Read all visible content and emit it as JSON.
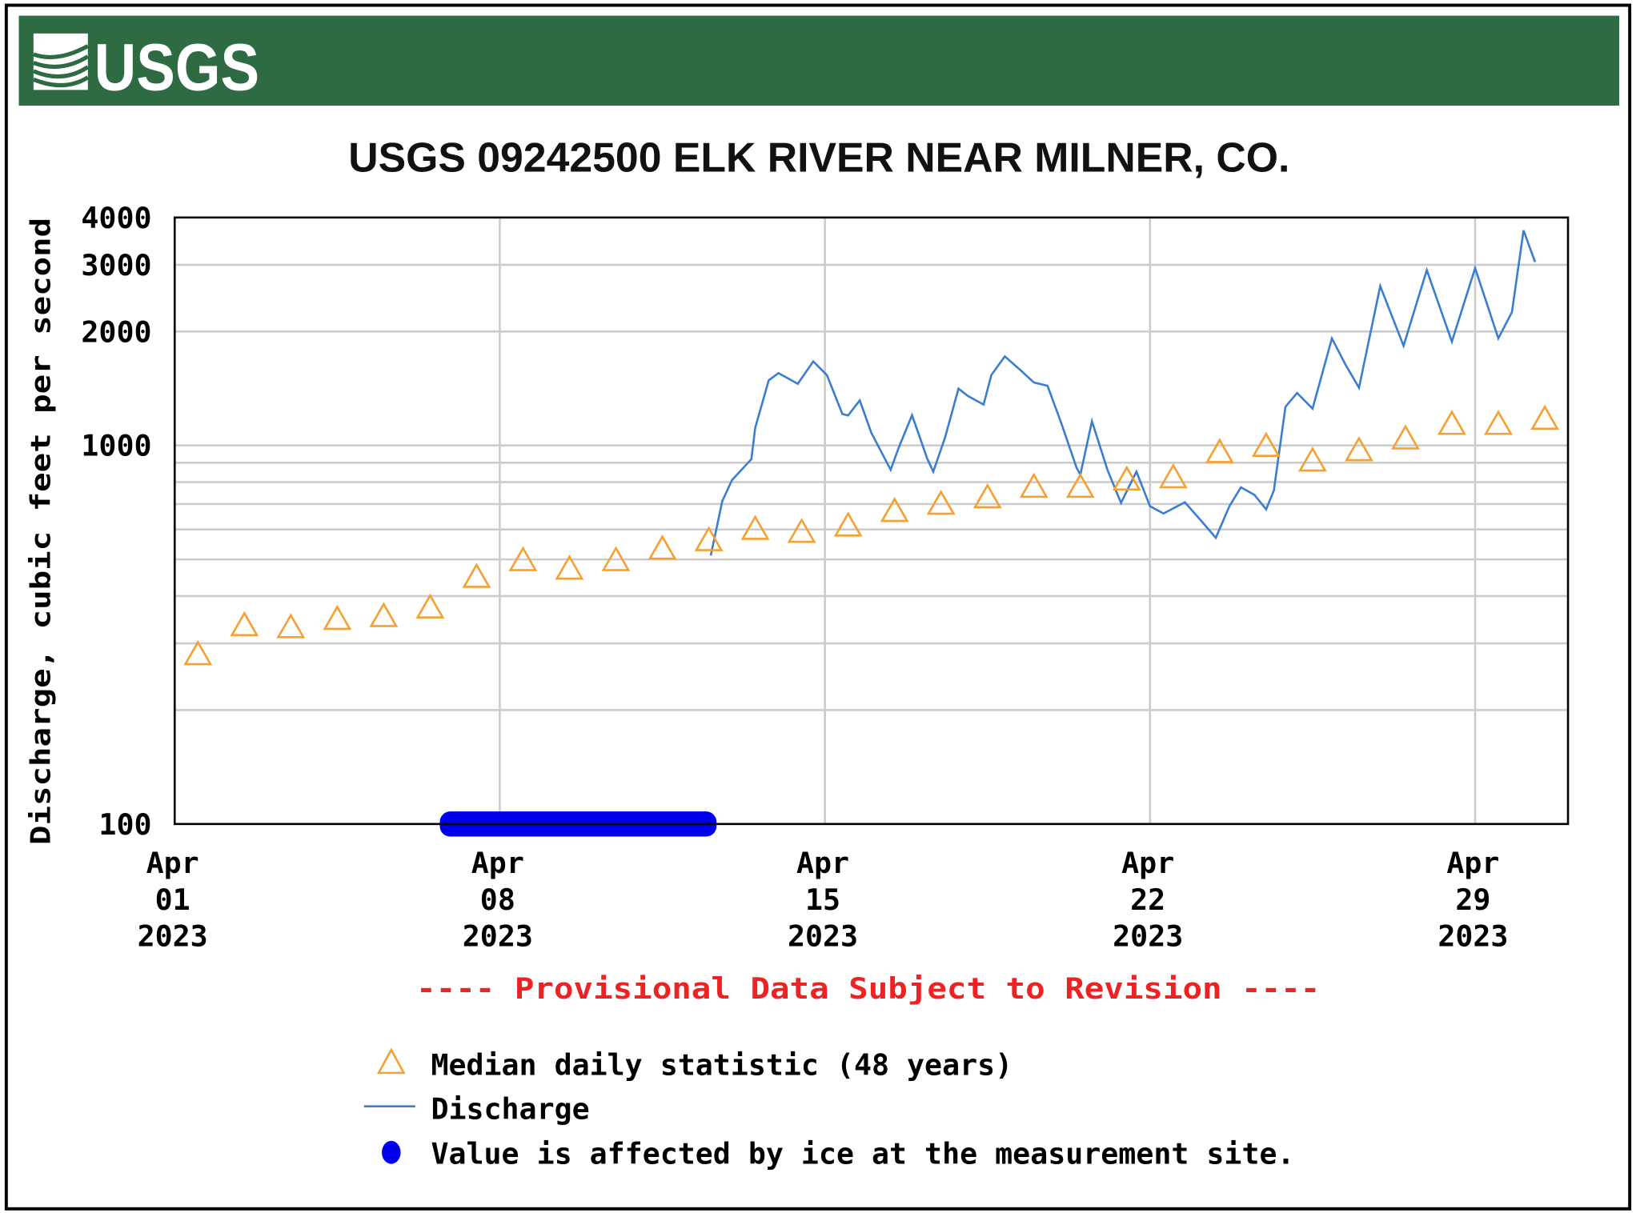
{
  "header": {
    "logo_text": "USGS",
    "banner_color": "#2e6b43"
  },
  "chart_data": {
    "type": "line",
    "title": "USGS 09242500 ELK RIVER NEAR MILNER, CO.",
    "ylabel": "Discharge, cubic feet per second",
    "xlabel": "",
    "y_scale": "log",
    "ylim": [
      100,
      4000
    ],
    "xlim": [
      "2023-04-01",
      "2023-05-01"
    ],
    "grid": true,
    "y_ticks": [
      "4000",
      "3000",
      "2000",
      "1000",
      "100"
    ],
    "x_ticks": [
      {
        "date": "2023-04-01",
        "label": [
          "Apr",
          "01",
          "2023"
        ]
      },
      {
        "date": "2023-04-08",
        "label": [
          "Apr",
          "08",
          "2023"
        ]
      },
      {
        "date": "2023-04-15",
        "label": [
          "Apr",
          "15",
          "2023"
        ]
      },
      {
        "date": "2023-04-22",
        "label": [
          "Apr",
          "22",
          "2023"
        ]
      },
      {
        "date": "2023-04-29",
        "label": [
          "Apr",
          "29",
          "2023"
        ]
      }
    ],
    "notice": "---- Provisional Data Subject to Revision ----",
    "legend_placement": "bottom",
    "series": [
      {
        "name": "Median daily statistic (48 years)",
        "marker": "triangle-open",
        "color": "#f5a030",
        "x": [
          "2023-04-01",
          "2023-04-02",
          "2023-04-03",
          "2023-04-04",
          "2023-04-05",
          "2023-04-06",
          "2023-04-07",
          "2023-04-08",
          "2023-04-09",
          "2023-04-10",
          "2023-04-11",
          "2023-04-12",
          "2023-04-13",
          "2023-04-14",
          "2023-04-15",
          "2023-04-16",
          "2023-04-17",
          "2023-04-18",
          "2023-04-19",
          "2023-04-20",
          "2023-04-21",
          "2023-04-22",
          "2023-04-23",
          "2023-04-24",
          "2023-04-25",
          "2023-04-26",
          "2023-04-27",
          "2023-04-28",
          "2023-04-29",
          "2023-04-30"
        ],
        "values": [
          280,
          334,
          330,
          347,
          353,
          372,
          448,
          496,
          471,
          496,
          532,
          560,
          600,
          589,
          612,
          669,
          699,
          727,
          775,
          775,
          810,
          821,
          957,
          994,
          909,
          968,
          1040,
          1136,
          1136,
          1172
        ]
      },
      {
        "name": "Discharge",
        "color": "#3a7fcf",
        "x": [
          "2023-04-12 13:00",
          "2023-04-12 19:00",
          "2023-04-13 00:00",
          "2023-04-13 10:00",
          "2023-04-13 12:00",
          "2023-04-13 19:00",
          "2023-04-14 00:00",
          "2023-04-14 10:00",
          "2023-04-14 18:00",
          "2023-04-15 01:00",
          "2023-04-15 09:00",
          "2023-04-15 12:00",
          "2023-04-15 18:00",
          "2023-04-16 00:00",
          "2023-04-16 10:00",
          "2023-04-16 14:00",
          "2023-04-16 21:00",
          "2023-04-17 05:00",
          "2023-04-17 08:00",
          "2023-04-17 14:00",
          "2023-04-17 21:00",
          "2023-04-18 02:00",
          "2023-04-18 10:00",
          "2023-04-18 14:00",
          "2023-04-18 21:00",
          "2023-04-19 05:00",
          "2023-04-19 12:00",
          "2023-04-19 19:00",
          "2023-04-20 02:00",
          "2023-04-20 10:00",
          "2023-04-20 12:00",
          "2023-04-20 18:00",
          "2023-04-21 02:00",
          "2023-04-21 09:00",
          "2023-04-21 17:00",
          "2023-04-22 00:00",
          "2023-04-22 07:00",
          "2023-04-22 18:00",
          "2023-04-23 02:00",
          "2023-04-23 10:00",
          "2023-04-23 17:00",
          "2023-04-23 23:00",
          "2023-04-24 06:00",
          "2023-04-24 12:00",
          "2023-04-24 16:00",
          "2023-04-24 22:00",
          "2023-04-25 04:00",
          "2023-04-25 12:00",
          "2023-04-25 22:00",
          "2023-04-26 05:00",
          "2023-04-26 12:00",
          "2023-04-26 23:00",
          "2023-04-27 11:00",
          "2023-04-27 23:00",
          "2023-04-28 12:00",
          "2023-04-29 00:00",
          "2023-04-29 12:00",
          "2023-04-29 19:00",
          "2023-04-30 01:00",
          "2023-04-30 07:00"
        ],
        "values": [
          512,
          713,
          810,
          920,
          1114,
          1486,
          1553,
          1455,
          1667,
          1534,
          1211,
          1200,
          1315,
          1080,
          862,
          982,
          1202,
          920,
          853,
          1045,
          1412,
          1350,
          1282,
          1534,
          1719,
          1582,
          1466,
          1438,
          1151,
          875,
          836,
          1159,
          862,
          705,
          853,
          691,
          661,
          708,
          636,
          570,
          691,
          775,
          740,
          678,
          760,
          1265,
          1376,
          1251,
          1918,
          1635,
          1420,
          2636,
          1833,
          2904,
          1880,
          2940,
          1918,
          2249,
          3698,
          3053
        ]
      },
      {
        "name": "Value is affected by ice at the measurement site.",
        "marker": "dot",
        "color": "#0000ee",
        "x_range": [
          "2023-04-06 17:00",
          "2023-04-12 16:00"
        ],
        "value": 100
      }
    ]
  }
}
